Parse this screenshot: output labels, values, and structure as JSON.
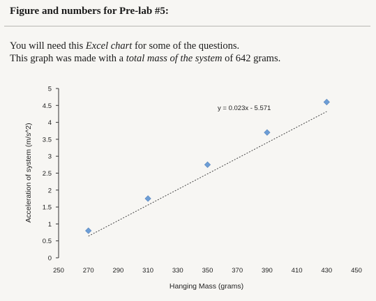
{
  "header": {
    "title": "Figure and numbers for Pre-lab #5:",
    "line1_a": "You will need this ",
    "line1_em": "Excel chart",
    "line1_b": " for some of the questions.",
    "line2_a": "This graph was made with a ",
    "line2_em": "total mass of the system",
    "line2_b": " of 642 grams."
  },
  "chart_data": {
    "type": "scatter",
    "xlabel": "Hanging Mass (grams)",
    "ylabel": "Acceleration of system (m/s^2)",
    "xlim": [
      250,
      450
    ],
    "ylim": [
      0,
      5
    ],
    "xticks": [
      250,
      270,
      290,
      310,
      330,
      350,
      370,
      390,
      410,
      430,
      450
    ],
    "yticks": [
      0,
      0.5,
      1,
      1.5,
      2,
      2.5,
      3,
      3.5,
      4,
      4.5,
      5
    ],
    "x": [
      270,
      310,
      350,
      390,
      430
    ],
    "y": [
      0.8,
      1.75,
      2.75,
      3.7,
      4.6
    ],
    "trendline": {
      "slope": 0.023,
      "intercept": -5.571,
      "equation": "y = 0.023x - 5.571"
    },
    "marker_color": "#6d9ed6",
    "trendline_color": "#444444",
    "grid": false,
    "legend": "none"
  }
}
